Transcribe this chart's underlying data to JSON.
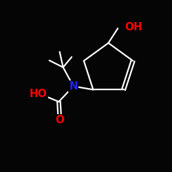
{
  "background_color": "#050505",
  "bond_color": "#ffffff",
  "bond_width": 1.6,
  "N_color": "#2222ff",
  "O_color": "#ff0000",
  "font_size": 10,
  "fig_size": [
    2.5,
    2.5
  ],
  "dpi": 100,
  "xlim": [
    0,
    10
  ],
  "ylim": [
    0,
    10
  ]
}
